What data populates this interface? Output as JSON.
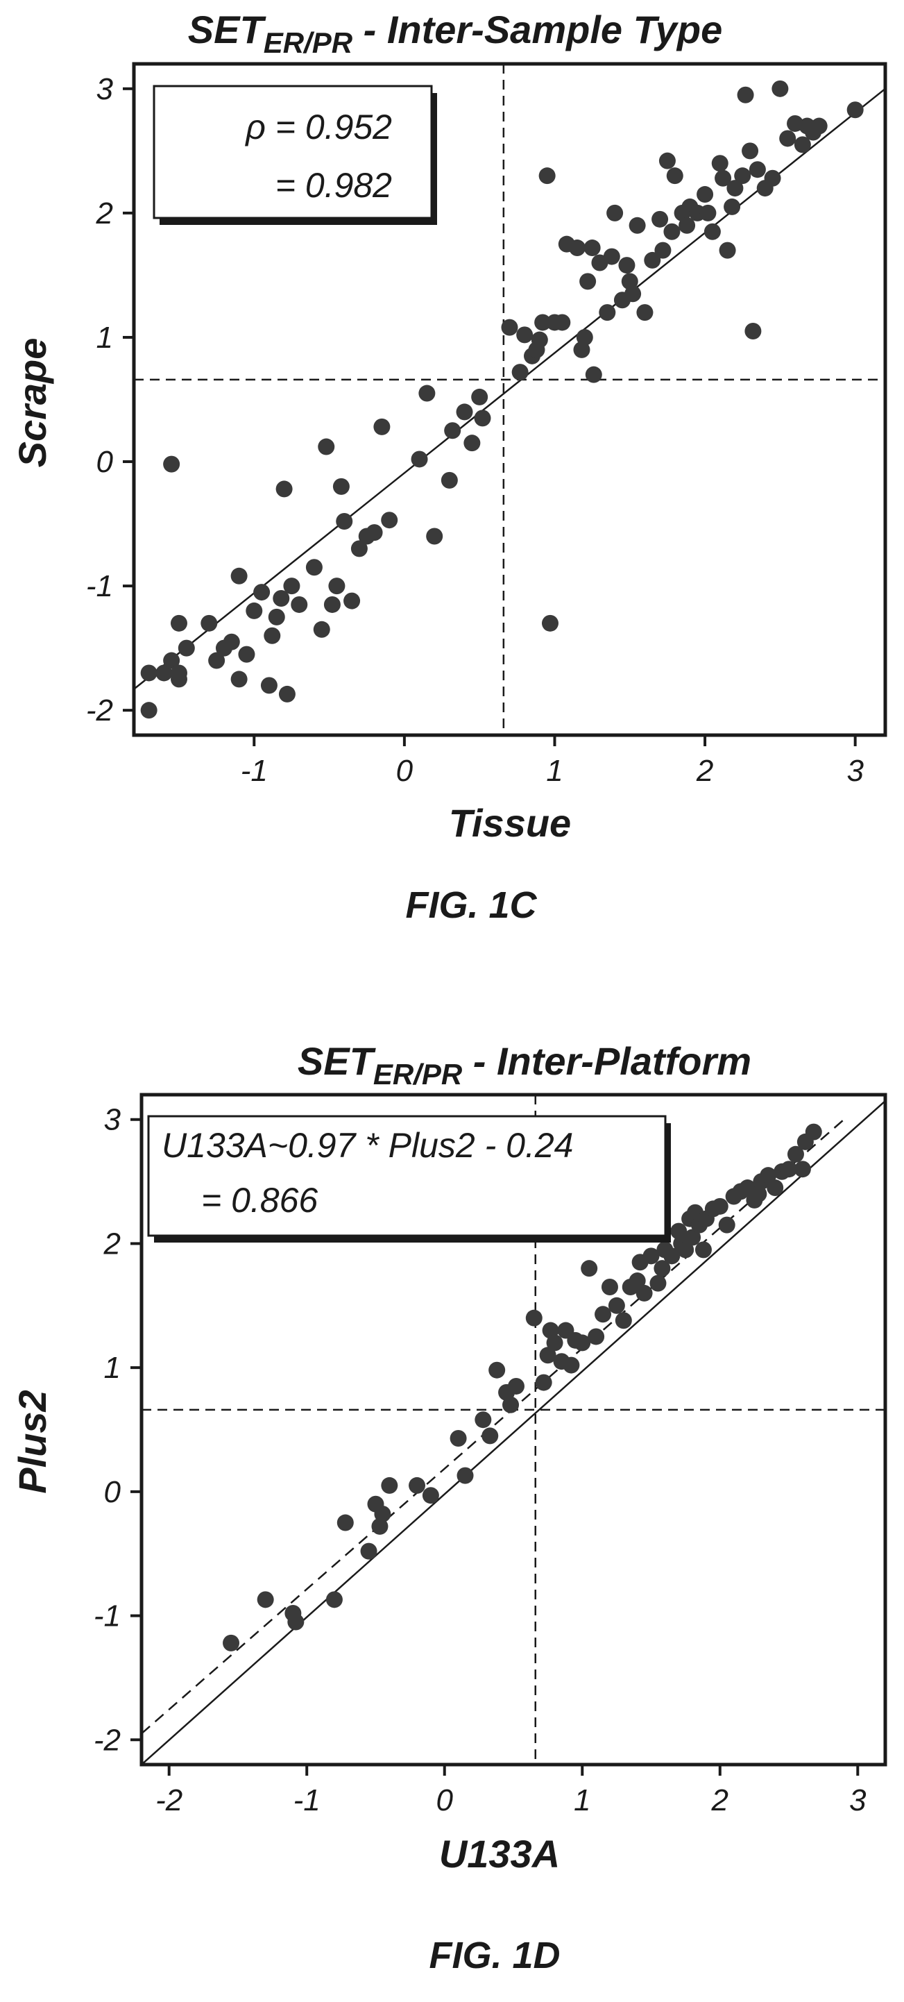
{
  "chart_data": [
    {
      "type": "scatter",
      "title_main": "SET",
      "title_sub": "ER/PR",
      "title_rest": " - Inter-Sample Type",
      "xlabel": "Tissue",
      "ylabel": "Scrape",
      "xlim": [
        -1.8,
        3.2
      ],
      "ylim": [
        -2.2,
        3.2
      ],
      "xticks": [
        -1,
        0,
        1,
        2,
        3
      ],
      "yticks": [
        -2,
        -1,
        0,
        1,
        2,
        3
      ],
      "annotation_lines": [
        "ρ = 0.952",
        "= 0.982"
      ],
      "figure_label": "FIG. 1C",
      "threshold": {
        "x": 0.66,
        "y": 0.66
      },
      "fit_lines": [
        {
          "style": "solid",
          "x": [
            -1.8,
            3.2
          ],
          "y": [
            -1.83,
            3.0
          ]
        }
      ],
      "points": [
        [
          -1.7,
          -2.0
        ],
        [
          -1.7,
          -1.7
        ],
        [
          -1.6,
          -1.7
        ],
        [
          -1.55,
          -1.6
        ],
        [
          -1.55,
          -0.02
        ],
        [
          -1.5,
          -1.75
        ],
        [
          -1.5,
          -1.7
        ],
        [
          -1.5,
          -1.3
        ],
        [
          -1.45,
          -1.5
        ],
        [
          -1.3,
          -1.3
        ],
        [
          -1.25,
          -1.6
        ],
        [
          -1.2,
          -1.5
        ],
        [
          -1.15,
          -1.45
        ],
        [
          -1.1,
          -1.75
        ],
        [
          -1.1,
          -0.92
        ],
        [
          -1.05,
          -1.55
        ],
        [
          -1.0,
          -1.2
        ],
        [
          -0.95,
          -1.05
        ],
        [
          -0.9,
          -1.8
        ],
        [
          -0.88,
          -1.4
        ],
        [
          -0.85,
          -1.25
        ],
        [
          -0.82,
          -1.1
        ],
        [
          -0.8,
          -0.22
        ],
        [
          -0.78,
          -1.87
        ],
        [
          -0.75,
          -1.0
        ],
        [
          -0.7,
          -1.15
        ],
        [
          -0.6,
          -0.85
        ],
        [
          -0.55,
          -1.35
        ],
        [
          -0.52,
          0.12
        ],
        [
          -0.48,
          -1.15
        ],
        [
          -0.45,
          -1.0
        ],
        [
          -0.42,
          -0.2
        ],
        [
          -0.4,
          -0.48
        ],
        [
          -0.35,
          -1.12
        ],
        [
          -0.3,
          -0.7
        ],
        [
          -0.25,
          -0.6
        ],
        [
          -0.2,
          -0.57
        ],
        [
          -0.15,
          0.28
        ],
        [
          -0.1,
          -0.47
        ],
        [
          0.1,
          0.02
        ],
        [
          0.15,
          0.55
        ],
        [
          0.2,
          -0.6
        ],
        [
          0.3,
          -0.15
        ],
        [
          0.32,
          0.25
        ],
        [
          0.4,
          0.4
        ],
        [
          0.45,
          0.15
        ],
        [
          0.5,
          0.52
        ],
        [
          0.52,
          0.35
        ],
        [
          0.7,
          1.08
        ],
        [
          0.77,
          0.72
        ],
        [
          0.8,
          1.02
        ],
        [
          0.85,
          0.85
        ],
        [
          0.88,
          0.9
        ],
        [
          0.9,
          0.98
        ],
        [
          0.92,
          1.12
        ],
        [
          0.95,
          2.3
        ],
        [
          0.97,
          -1.3
        ],
        [
          1.0,
          1.12
        ],
        [
          1.05,
          1.12
        ],
        [
          1.08,
          1.75
        ],
        [
          1.15,
          1.72
        ],
        [
          1.18,
          0.9
        ],
        [
          1.2,
          1.0
        ],
        [
          1.22,
          1.45
        ],
        [
          1.25,
          1.72
        ],
        [
          1.26,
          0.7
        ],
        [
          1.3,
          1.6
        ],
        [
          1.35,
          1.2
        ],
        [
          1.38,
          1.65
        ],
        [
          1.4,
          2.0
        ],
        [
          1.45,
          1.3
        ],
        [
          1.48,
          1.58
        ],
        [
          1.5,
          1.45
        ],
        [
          1.52,
          1.35
        ],
        [
          1.55,
          1.9
        ],
        [
          1.6,
          1.2
        ],
        [
          1.65,
          1.62
        ],
        [
          1.7,
          1.95
        ],
        [
          1.72,
          1.7
        ],
        [
          1.75,
          2.42
        ],
        [
          1.78,
          1.85
        ],
        [
          1.8,
          2.3
        ],
        [
          1.85,
          2.0
        ],
        [
          1.88,
          1.9
        ],
        [
          1.9,
          2.05
        ],
        [
          1.95,
          2.0
        ],
        [
          2.0,
          2.15
        ],
        [
          2.02,
          2.0
        ],
        [
          2.05,
          1.85
        ],
        [
          2.1,
          2.4
        ],
        [
          2.12,
          2.28
        ],
        [
          2.15,
          1.7
        ],
        [
          2.18,
          2.05
        ],
        [
          2.2,
          2.2
        ],
        [
          2.25,
          2.3
        ],
        [
          2.27,
          2.95
        ],
        [
          2.3,
          2.5
        ],
        [
          2.32,
          1.05
        ],
        [
          2.35,
          2.35
        ],
        [
          2.4,
          2.2
        ],
        [
          2.45,
          2.28
        ],
        [
          2.5,
          3.0
        ],
        [
          2.55,
          2.6
        ],
        [
          2.6,
          2.72
        ],
        [
          2.65,
          2.55
        ],
        [
          2.68,
          2.7
        ],
        [
          2.72,
          2.65
        ],
        [
          2.76,
          2.7
        ],
        [
          3.0,
          2.83
        ]
      ]
    },
    {
      "type": "scatter",
      "title_main": "SET",
      "title_sub": "ER/PR",
      "title_rest": " - Inter-Platform",
      "xlabel": "U133A",
      "ylabel": "Plus2",
      "xlim": [
        -2.2,
        3.2
      ],
      "ylim": [
        -2.2,
        3.2
      ],
      "xticks": [
        -2,
        -1,
        0,
        1,
        2,
        3
      ],
      "yticks": [
        -2,
        -1,
        0,
        1,
        2,
        3
      ],
      "annotation_lines": [
        "U133A~0.97 * Plus2 - 0.24",
        "= 0.866"
      ],
      "figure_label": "FIG. 1D",
      "threshold": {
        "x": 0.66,
        "y": 0.66
      },
      "fit_lines": [
        {
          "style": "solid",
          "x": [
            -2.2,
            3.2
          ],
          "y": [
            -2.2,
            3.15
          ]
        },
        {
          "style": "dashed",
          "x": [
            -2.2,
            2.9
          ],
          "y": [
            -1.95,
            3.0
          ]
        }
      ],
      "points": [
        [
          -1.55,
          -1.22
        ],
        [
          -1.3,
          -0.87
        ],
        [
          -1.1,
          -0.98
        ],
        [
          -1.08,
          -1.05
        ],
        [
          -0.8,
          -0.87
        ],
        [
          -0.72,
          -0.25
        ],
        [
          -0.55,
          -0.48
        ],
        [
          -0.5,
          -0.1
        ],
        [
          -0.47,
          -0.28
        ],
        [
          -0.45,
          -0.18
        ],
        [
          -0.4,
          0.05
        ],
        [
          -0.2,
          0.05
        ],
        [
          -0.1,
          -0.03
        ],
        [
          0.1,
          0.43
        ],
        [
          0.15,
          0.13
        ],
        [
          0.28,
          0.58
        ],
        [
          0.33,
          0.45
        ],
        [
          0.38,
          0.98
        ],
        [
          0.45,
          0.8
        ],
        [
          0.48,
          0.7
        ],
        [
          0.52,
          0.85
        ],
        [
          0.65,
          1.4
        ],
        [
          0.72,
          0.88
        ],
        [
          0.75,
          1.1
        ],
        [
          0.77,
          1.3
        ],
        [
          0.8,
          1.2
        ],
        [
          0.85,
          1.05
        ],
        [
          0.88,
          1.3
        ],
        [
          0.92,
          1.02
        ],
        [
          0.95,
          1.22
        ],
        [
          1.0,
          1.2
        ],
        [
          1.05,
          1.8
        ],
        [
          1.1,
          1.25
        ],
        [
          1.15,
          1.43
        ],
        [
          1.2,
          1.65
        ],
        [
          1.25,
          1.5
        ],
        [
          1.3,
          1.38
        ],
        [
          1.35,
          1.65
        ],
        [
          1.4,
          1.7
        ],
        [
          1.42,
          1.85
        ],
        [
          1.45,
          1.6
        ],
        [
          1.5,
          1.9
        ],
        [
          1.55,
          1.68
        ],
        [
          1.58,
          1.8
        ],
        [
          1.6,
          1.95
        ],
        [
          1.65,
          1.9
        ],
        [
          1.7,
          2.1
        ],
        [
          1.72,
          2.0
        ],
        [
          1.75,
          1.95
        ],
        [
          1.78,
          2.2
        ],
        [
          1.8,
          2.05
        ],
        [
          1.82,
          2.25
        ],
        [
          1.85,
          2.15
        ],
        [
          1.88,
          1.95
        ],
        [
          1.9,
          2.2
        ],
        [
          1.95,
          2.28
        ],
        [
          2.0,
          2.3
        ],
        [
          2.05,
          2.15
        ],
        [
          2.1,
          2.38
        ],
        [
          2.15,
          2.42
        ],
        [
          2.2,
          2.45
        ],
        [
          2.25,
          2.35
        ],
        [
          2.28,
          2.4
        ],
        [
          2.3,
          2.5
        ],
        [
          2.35,
          2.55
        ],
        [
          2.4,
          2.45
        ],
        [
          2.45,
          2.58
        ],
        [
          2.5,
          2.6
        ],
        [
          2.55,
          2.72
        ],
        [
          2.6,
          2.6
        ],
        [
          2.62,
          2.82
        ],
        [
          2.68,
          2.9
        ]
      ]
    }
  ]
}
